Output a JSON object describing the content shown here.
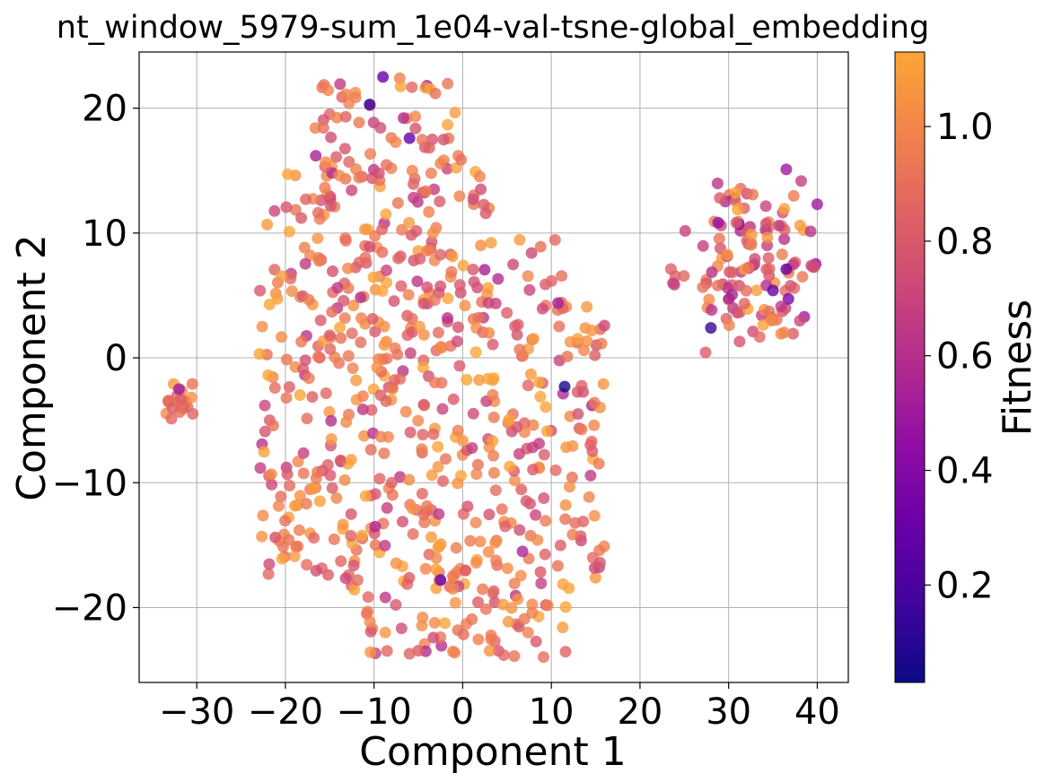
{
  "chart_data": {
    "type": "scatter",
    "title": "nt_window_5979-sum_1e04-val-tsne-global_embedding",
    "xlabel": "Component 1",
    "ylabel": "Component 2",
    "xlim": [
      -36.5,
      43.5
    ],
    "ylim": [
      -26,
      24.5
    ],
    "xticks": [
      -30,
      -20,
      -10,
      0,
      10,
      20,
      30,
      40
    ],
    "yticks": [
      -20,
      -10,
      0,
      10,
      20
    ],
    "xtick_labels": [
      "−30",
      "−20",
      "−10",
      "0",
      "10",
      "20",
      "30",
      "40"
    ],
    "ytick_labels": [
      "−20",
      "−10",
      "0",
      "10",
      "20"
    ],
    "grid": true,
    "colorbar": {
      "label": "Fitness",
      "colormap": "plasma",
      "range": [
        0.03,
        1.13
      ],
      "ticks": [
        0.2,
        0.4,
        0.6,
        0.8,
        1.0
      ],
      "tick_labels": [
        "0.2",
        "0.4",
        "0.6",
        "0.8",
        "1.0"
      ]
    },
    "clusters": [
      {
        "name": "",
        "center": [
          -6,
          -2
        ],
        "spread": [
          14,
          18
        ],
        "count": 720,
        "xrange": [
          -23,
          16
        ],
        "yrange": [
          -24,
          22.5
        ],
        "fitness_mean": 0.9,
        "fitness_sd": 0.15
      },
      {
        "name": "",
        "center": [
          33,
          7
        ],
        "spread": [
          4,
          6
        ],
        "count": 130,
        "xrange": [
          22.5,
          40
        ],
        "yrange": [
          -1,
          15
        ],
        "fitness_mean": 0.82,
        "fitness_sd": 0.16
      },
      {
        "name": "",
        "center": [
          -32,
          -3.5
        ],
        "spread": [
          1,
          1.3
        ],
        "count": 22,
        "xrange": [
          -34,
          -30
        ],
        "yrange": [
          -5,
          -2
        ],
        "fitness_mean": 0.95,
        "fitness_sd": 0.08
      }
    ],
    "highlight_points": [
      {
        "x": -9,
        "y": 22.5,
        "fitness": 0.3
      },
      {
        "x": -10.5,
        "y": 20.3,
        "fitness": 0.15
      },
      {
        "x": -6,
        "y": 17.6,
        "fitness": 0.3
      },
      {
        "x": 11.5,
        "y": -2.3,
        "fitness": 0.06
      },
      {
        "x": 28,
        "y": 2.4,
        "fitness": 0.15
      },
      {
        "x": 36.5,
        "y": 7.1,
        "fitness": 0.3
      },
      {
        "x": 35,
        "y": 5.4,
        "fitness": 0.3
      },
      {
        "x": -32,
        "y": -2.5,
        "fitness": 0.5
      },
      {
        "x": -2.5,
        "y": -17.8,
        "fitness": 0.3
      },
      {
        "x": -6,
        "y": -23.7,
        "fitness": 0.85
      },
      {
        "x": 40,
        "y": 12.3,
        "fitness": 0.5
      },
      {
        "x": 36.5,
        "y": 15.1,
        "fitness": 0.5
      }
    ]
  }
}
